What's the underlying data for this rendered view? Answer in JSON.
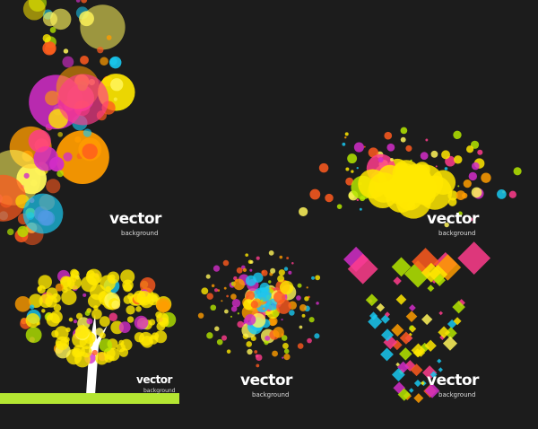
{
  "labels": [
    {
      "title": "vector",
      "subtitle": "background"
    },
    {
      "title": "vector",
      "subtitle": "background"
    },
    {
      "title": "vector",
      "subtitle": "background"
    },
    {
      "title": "vector",
      "subtitle": "background"
    },
    {
      "title": "vector",
      "subtitle": "background"
    }
  ],
  "colors": {
    "background": "#1c1c1c",
    "palette": [
      "#ffe800",
      "#ff9c00",
      "#ff3c8c",
      "#19c8f0",
      "#b4e600",
      "#ff5a1e",
      "#d22dc8",
      "#fff55a"
    ],
    "grass": "#b4e632",
    "trunk": "#ffffff"
  }
}
